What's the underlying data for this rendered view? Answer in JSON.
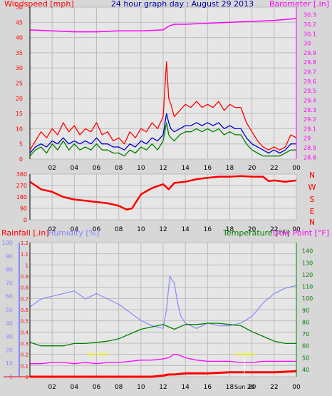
{
  "header": {
    "left_label": "Windspeed [mph]",
    "title": "24 hour graph day : August 29 2013",
    "right_label": "Barometer [.in]"
  },
  "colors": {
    "background": "#d7d7d7",
    "plot_bg": "#e6e6e6",
    "grid": "#bdbdbd",
    "windspeed": "#ff0000",
    "wind_avg": "#0000cc",
    "wind_gust_avg": "#008000",
    "barometer": "#ff00ff",
    "rain": "#ff0000",
    "humidity": "#8888ff",
    "temperature": "#008000",
    "dewpoint": "#ff00ff",
    "sun": "#ffff00",
    "sun_marker": "#ffffff"
  },
  "time_ticks": [
    "02",
    "04",
    "06",
    "08",
    "10",
    "12",
    "14",
    "16",
    "18",
    "20",
    "22",
    "00"
  ],
  "compass_labels": [
    "N",
    "W",
    "S",
    "E",
    "N"
  ],
  "bottom_legend": {
    "rainfall": "Rainfall [.in]",
    "humidity": "Humidity [%]",
    "temperature": "Temperature [°F]",
    "dewpoint": "Dew Point [°F]"
  },
  "sun_labels": {
    "sunrise": "Sunrise",
    "sunset": "Sunset",
    "sun_tick": "Sun 20"
  },
  "chart_data": [
    {
      "type": "line",
      "title": "24 hour graph day : August 29 2013",
      "ylabel": "Windspeed [mph]",
      "ylabel_right": "Barometer [.in]",
      "x_label_ticks": [
        "02",
        "04",
        "06",
        "08",
        "10",
        "12",
        "14",
        "16",
        "18",
        "20",
        "22",
        "00"
      ],
      "ylim": [
        0,
        50
      ],
      "y_ticks": [
        0,
        5,
        10,
        15,
        20,
        25,
        30,
        35,
        40,
        45,
        50
      ],
      "ylim_right": [
        28.78,
        30.38
      ],
      "y_ticks_right": [
        28.8,
        28.9,
        29,
        29.1,
        29.2,
        29.3,
        29.4,
        29.5,
        29.6,
        29.7,
        29.8,
        29.9,
        30,
        30.1,
        30.2,
        30.3
      ],
      "grid": true,
      "series": [
        {
          "name": "Windspeed",
          "axis": "left",
          "x": [
            0.0,
            0.5,
            1.0,
            1.5,
            2.0,
            2.5,
            3.0,
            3.5,
            4.0,
            4.5,
            5.0,
            5.5,
            6.0,
            6.5,
            7.0,
            7.5,
            8.0,
            8.5,
            9.0,
            9.5,
            10.0,
            10.5,
            11.0,
            11.5,
            12.0,
            12.3,
            12.5,
            12.7,
            13.0,
            13.5,
            14.0,
            14.5,
            15.0,
            15.5,
            16.0,
            16.5,
            17.0,
            17.5,
            18.0,
            18.5,
            19.0,
            19.5,
            20.0,
            20.5,
            21.0,
            21.5,
            22.0,
            22.5,
            23.0,
            23.5,
            24.0
          ],
          "values": [
            3,
            6,
            9,
            7,
            10,
            8,
            12,
            9,
            11,
            8,
            10,
            9,
            12,
            8,
            9,
            6,
            7,
            5,
            9,
            7,
            10,
            9,
            12,
            10,
            14,
            32,
            20,
            18,
            14,
            16,
            18,
            17,
            19,
            17,
            18,
            17,
            19,
            16,
            18,
            17,
            17,
            12,
            9,
            6,
            4,
            3,
            4,
            3,
            4,
            8,
            7
          ]
        },
        {
          "name": "Avg Wind",
          "axis": "left",
          "x": [
            0.0,
            0.5,
            1.0,
            1.5,
            2.0,
            2.5,
            3.0,
            3.5,
            4.0,
            4.5,
            5.0,
            5.5,
            6.0,
            6.5,
            7.0,
            7.5,
            8.0,
            8.5,
            9.0,
            9.5,
            10.0,
            10.5,
            11.0,
            11.5,
            12.0,
            12.3,
            12.5,
            12.7,
            13.0,
            13.5,
            14.0,
            14.5,
            15.0,
            15.5,
            16.0,
            16.5,
            17.0,
            17.5,
            18.0,
            18.5,
            19.0,
            19.5,
            20.0,
            20.5,
            21.0,
            21.5,
            22.0,
            22.5,
            23.0,
            23.5,
            24.0
          ],
          "values": [
            2,
            4,
            5,
            4,
            6,
            5,
            7,
            5,
            6,
            5,
            6,
            5,
            7,
            5,
            5,
            4,
            4,
            3,
            5,
            4,
            6,
            5,
            7,
            6,
            8,
            15,
            12,
            10,
            9,
            10,
            11,
            11,
            12,
            11,
            12,
            11,
            12,
            10,
            11,
            10,
            10,
            7,
            5,
            4,
            3,
            2,
            3,
            2,
            3,
            5,
            5
          ]
        },
        {
          "name": "Avg Gust",
          "axis": "left",
          "x": [
            0.0,
            0.5,
            1.0,
            1.5,
            2.0,
            2.5,
            3.0,
            3.5,
            4.0,
            4.5,
            5.0,
            5.5,
            6.0,
            6.5,
            7.0,
            7.5,
            8.0,
            8.5,
            9.0,
            9.5,
            10.0,
            10.5,
            11.0,
            11.5,
            12.0,
            12.3,
            12.5,
            12.7,
            13.0,
            13.5,
            14.0,
            14.5,
            15.0,
            15.5,
            16.0,
            16.5,
            17.0,
            17.5,
            18.0,
            18.5,
            19.0,
            19.5,
            20.0,
            20.5,
            21.0,
            21.5,
            22.0,
            22.5,
            23.0,
            23.5,
            24.0
          ],
          "values": [
            1,
            3,
            4,
            2,
            5,
            3,
            6,
            3,
            5,
            3,
            4,
            3,
            5,
            3,
            3,
            2,
            2,
            1,
            3,
            2,
            4,
            3,
            5,
            3,
            6,
            12,
            8,
            7,
            6,
            8,
            9,
            9,
            10,
            9,
            10,
            9,
            10,
            8,
            9,
            8,
            8,
            5,
            3,
            2,
            1,
            1,
            1,
            1,
            2,
            3,
            3
          ]
        },
        {
          "name": "Barometer",
          "axis": "right",
          "x": [
            0,
            2,
            4,
            6,
            8,
            10,
            12,
            12.5,
            13,
            14,
            16,
            18,
            20,
            22,
            24
          ],
          "values": [
            30.14,
            30.13,
            30.12,
            30.12,
            30.13,
            30.13,
            30.14,
            30.18,
            30.2,
            30.2,
            30.21,
            30.22,
            30.23,
            30.24,
            30.26
          ]
        }
      ]
    },
    {
      "type": "line",
      "ylabel": "Wind Direction",
      "ylim": [
        0,
        360
      ],
      "y_ticks": [
        0,
        90,
        180,
        270,
        360
      ],
      "x_label_ticks": [
        "02",
        "04",
        "06",
        "08",
        "10",
        "12",
        "14",
        "16",
        "18",
        "20",
        "22",
        "00"
      ],
      "grid": true,
      "series": [
        {
          "name": "Wind Direction",
          "x": [
            0,
            0.5,
            1,
            2,
            3,
            4,
            5,
            6,
            7,
            8,
            8.7,
            9.2,
            10,
            11,
            12,
            12.5,
            13,
            14,
            15,
            16,
            17,
            18,
            19,
            20,
            21,
            21.5,
            22,
            23,
            24
          ],
          "values": [
            300,
            270,
            240,
            220,
            180,
            160,
            150,
            140,
            130,
            110,
            80,
            90,
            200,
            250,
            280,
            240,
            290,
            300,
            320,
            330,
            340,
            340,
            345,
            340,
            340,
            305,
            310,
            300,
            310
          ]
        }
      ]
    },
    {
      "type": "line",
      "ylabel": "Rainfall [.in]",
      "ylabel_second": "Humidity [%]",
      "ylabel_right": "Temperature [°F]",
      "ylabel_right_second": "Dew Point [°F]",
      "x_label_ticks": [
        "02",
        "04",
        "06",
        "08",
        "10",
        "12",
        "14",
        "16",
        "18",
        "20",
        "22",
        "00"
      ],
      "ylim": [
        0,
        1.2
      ],
      "y_ticks": [
        0,
        0.1,
        0.2,
        0.3,
        0.4,
        0.5,
        0.6,
        0.7,
        0.8,
        0.9,
        1,
        1.1,
        1.2
      ],
      "ylim_second": [
        0,
        100
      ],
      "y_ticks_second": [
        0,
        10,
        20,
        30,
        40,
        50,
        60,
        70,
        80,
        90,
        100
      ],
      "ylim_right": [
        34,
        147
      ],
      "y_ticks_right": [
        40,
        50,
        60,
        70,
        80,
        90,
        100,
        110,
        120,
        130,
        140
      ],
      "grid": true,
      "series": [
        {
          "name": "Humidity",
          "axis": "second",
          "x": [
            0,
            1,
            2,
            3,
            4,
            5,
            6,
            7,
            8,
            9,
            10,
            11,
            12,
            12.3,
            12.6,
            12.8,
            13,
            13.3,
            13.6,
            14,
            14.5,
            15,
            16,
            17,
            18,
            19,
            20,
            21,
            22,
            23,
            24
          ],
          "values": [
            52,
            58,
            60,
            62,
            64,
            58,
            62,
            58,
            54,
            48,
            42,
            38,
            36,
            50,
            75,
            72,
            70,
            55,
            45,
            40,
            38,
            36,
            40,
            38,
            38,
            40,
            45,
            55,
            62,
            66,
            68
          ]
        },
        {
          "name": "Temperature",
          "axis": "right",
          "x": [
            0,
            1,
            2,
            3,
            4,
            5,
            6,
            7,
            8,
            9,
            10,
            11,
            12,
            12.5,
            13,
            13.5,
            14,
            15,
            16,
            17,
            18,
            19,
            20,
            21,
            22,
            23,
            24
          ],
          "values": [
            63,
            60,
            60,
            60,
            62,
            62,
            63,
            64,
            66,
            70,
            74,
            76,
            78,
            76,
            74,
            76,
            78,
            78,
            79,
            79,
            78,
            77,
            72,
            68,
            64,
            62,
            62
          ]
        },
        {
          "name": "Dew Point",
          "axis": "right",
          "x": [
            0,
            1,
            2,
            3,
            4,
            5,
            6,
            7,
            8,
            9,
            10,
            11,
            12,
            12.5,
            13,
            13.5,
            14,
            15,
            16,
            17,
            18,
            19,
            20,
            21,
            22,
            23,
            24
          ],
          "values": [
            45,
            45,
            46,
            46,
            45,
            46,
            45,
            46,
            46,
            47,
            48,
            48,
            49,
            50,
            53,
            52,
            50,
            48,
            47,
            47,
            47,
            46,
            46,
            47,
            47,
            47,
            47
          ]
        },
        {
          "name": "Rainfall",
          "axis": "left",
          "x": [
            0,
            11,
            12,
            12.5,
            13,
            14,
            16,
            18,
            20,
            22,
            24
          ],
          "values": [
            0,
            0,
            0.01,
            0.02,
            0.02,
            0.03,
            0.03,
            0.04,
            0.04,
            0.04,
            0.05
          ]
        }
      ]
    }
  ]
}
